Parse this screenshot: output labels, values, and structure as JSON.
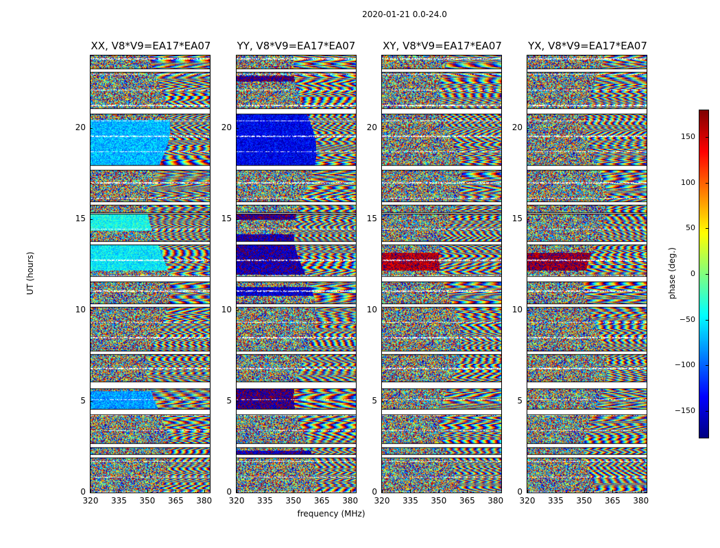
{
  "suptitle": "2020-01-21 0.0-24.0",
  "chart_data": {
    "type": "heatmap",
    "x": {
      "label": "frequency (MHz)",
      "range": [
        320,
        383
      ],
      "ticks": [
        320,
        335,
        350,
        365,
        380
      ]
    },
    "y": {
      "label": "UT (hours)",
      "range": [
        0,
        24
      ],
      "ticks": [
        0,
        5,
        10,
        15,
        20
      ]
    },
    "colorbar": {
      "label": "phase (deg.)",
      "range": [
        -180,
        180
      ],
      "ticks": [
        -150,
        -100,
        -50,
        0,
        50,
        100,
        150
      ],
      "colormap": "jet"
    },
    "panels": [
      {
        "title": "XX, V8*V9=EA17*EA07",
        "baseline_phase": -60,
        "bias_bands": [
          [
            12.2,
            13.6,
            -50
          ],
          [
            4.5,
            5.6,
            -80
          ],
          [
            18,
            20.5,
            -70
          ],
          [
            14.4,
            15.3,
            -40
          ]
        ]
      },
      {
        "title": "YY, V8*V9=EA17*EA07",
        "baseline_phase": -150,
        "bias_bands": [
          [
            12.0,
            14.2,
            -160
          ],
          [
            4.6,
            5.7,
            -170
          ],
          [
            18.0,
            21.0,
            -140
          ],
          [
            15.0,
            15.3,
            -170
          ],
          [
            22.6,
            22.9,
            -170
          ],
          [
            10.8,
            11.3,
            -150
          ],
          [
            2.0,
            2.3,
            -160
          ]
        ]
      },
      {
        "title": "XY, V8*V9=EA17*EA07",
        "baseline_phase": 150,
        "bias_bands": [
          [
            12.2,
            13.2,
            160
          ]
        ]
      },
      {
        "title": "YX, V8*V9=EA17*EA07",
        "baseline_phase": 150,
        "bias_bands": [
          [
            12.2,
            13.2,
            170
          ]
        ]
      }
    ],
    "data_gaps_hours": [
      [
        23.1,
        23.3
      ],
      [
        20.8,
        21.1
      ],
      [
        17.7,
        18.0
      ],
      [
        15.8,
        16.0
      ],
      [
        15.3,
        15.4
      ],
      [
        13.6,
        13.8
      ],
      [
        11.6,
        11.9
      ],
      [
        10.2,
        10.4
      ],
      [
        7.6,
        7.8
      ],
      [
        5.7,
        6.1
      ],
      [
        4.3,
        4.6
      ],
      [
        2.5,
        2.7
      ],
      [
        1.9,
        2.1
      ]
    ]
  }
}
